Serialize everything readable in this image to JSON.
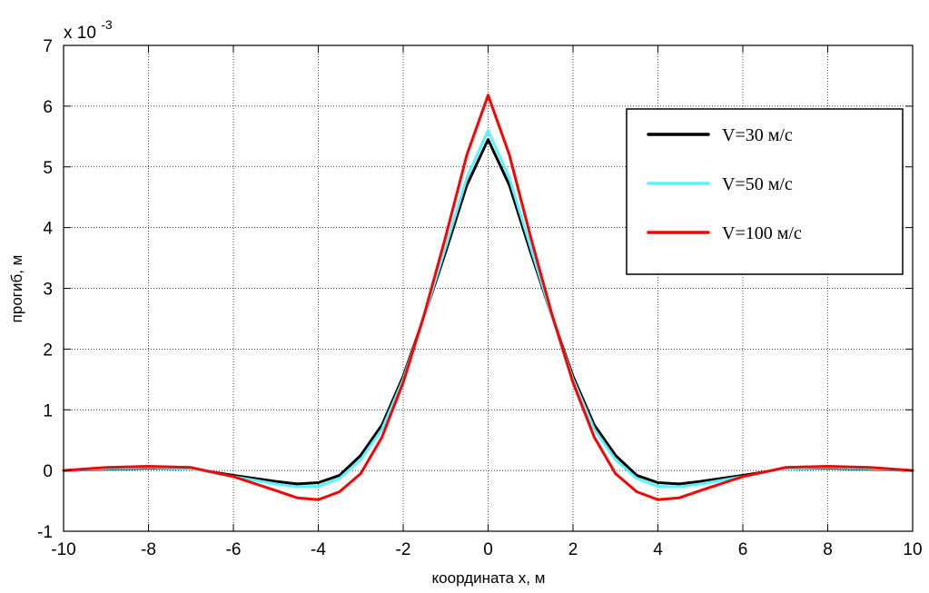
{
  "chart_data": {
    "type": "line",
    "xlabel": "координата x, м",
    "ylabel": "прогиб, м",
    "y_exponent_label": {
      "prefix": "x 10",
      "exponent": "-3"
    },
    "xlim": [
      -10,
      10
    ],
    "ylim": [
      -1,
      7
    ],
    "x_ticks": [
      -10,
      -8,
      -6,
      -4,
      -2,
      0,
      2,
      4,
      6,
      8,
      10
    ],
    "y_ticks": [
      -1,
      0,
      1,
      2,
      3,
      4,
      5,
      6,
      7
    ],
    "x_tick_labels": [
      "-10",
      "-8",
      "-6",
      "-4",
      "-2",
      "0",
      "2",
      "4",
      "6",
      "8",
      "10"
    ],
    "y_tick_labels": [
      "-1",
      "0",
      "1",
      "2",
      "3",
      "4",
      "5",
      "6",
      "7"
    ],
    "grid": true,
    "legend_position": "upper-right",
    "x": [
      -10,
      -9,
      -8,
      -7,
      -6,
      -5,
      -4.5,
      -4,
      -3.5,
      -3,
      -2.5,
      -2,
      -1.5,
      -1,
      -0.5,
      0,
      0.5,
      1,
      1.5,
      2,
      2.5,
      3,
      3.5,
      4,
      4.5,
      5,
      6,
      7,
      8,
      9,
      10
    ],
    "series": [
      {
        "name": "V=30 м/с",
        "color": "#000000",
        "values": [
          0,
          0.02,
          0.04,
          0.03,
          -0.08,
          -0.18,
          -0.22,
          -0.2,
          -0.08,
          0.25,
          0.75,
          1.55,
          2.55,
          3.6,
          4.7,
          5.45,
          4.7,
          3.6,
          2.55,
          1.55,
          0.75,
          0.25,
          -0.08,
          -0.2,
          -0.22,
          -0.18,
          -0.08,
          0.03,
          0.04,
          0.02,
          0
        ]
      },
      {
        "name": "V=50 м/с",
        "color": "#55f5ff",
        "values": [
          0,
          0.03,
          0.05,
          0.03,
          -0.1,
          -0.22,
          -0.27,
          -0.26,
          -0.13,
          0.18,
          0.68,
          1.5,
          2.55,
          3.68,
          4.82,
          5.6,
          4.82,
          3.68,
          2.55,
          1.5,
          0.68,
          0.18,
          -0.13,
          -0.26,
          -0.27,
          -0.22,
          -0.1,
          0.03,
          0.05,
          0.03,
          0
        ]
      },
      {
        "name": "V=100 м/с",
        "color": "#ff0000",
        "values": [
          0,
          0.05,
          0.07,
          0.05,
          -0.1,
          -0.33,
          -0.45,
          -0.48,
          -0.35,
          -0.05,
          0.55,
          1.45,
          2.58,
          3.85,
          5.2,
          6.18,
          5.2,
          3.85,
          2.58,
          1.45,
          0.55,
          -0.05,
          -0.35,
          -0.48,
          -0.45,
          -0.33,
          -0.1,
          0.05,
          0.07,
          0.05,
          0
        ]
      }
    ]
  }
}
